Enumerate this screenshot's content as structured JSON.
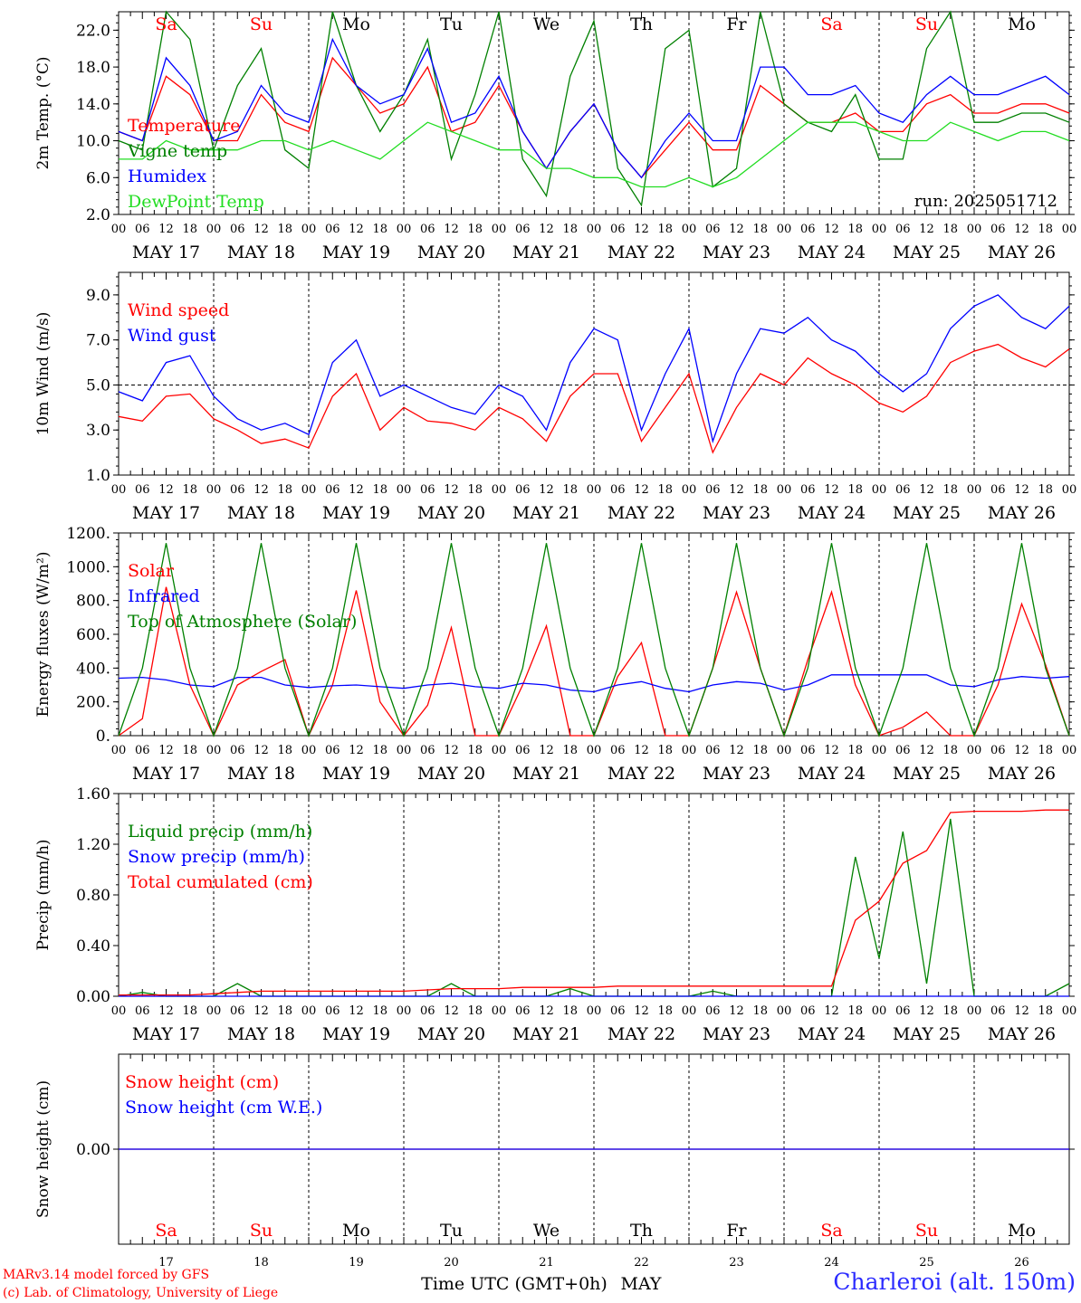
{
  "run_label": "run: 2025051712",
  "footer": {
    "credit_line1": "MARv3.14 model forced by GFS",
    "credit_line2": "(c) Lab. of Climatology, University of Liege",
    "time_axis_label": "Time UTC (GMT+0h)",
    "month_label": "MAY",
    "station": "Charleroi (alt. 150m)"
  },
  "colors": {
    "red": "#ff0000",
    "green": "#008000",
    "blue": "#0000ff",
    "lightgreen": "#22dd22",
    "black": "#000000",
    "weekend": "#ff0000"
  },
  "chart_data": [
    {
      "type": "line",
      "ylabel": "2m Temp. (°C)",
      "ylim": [
        2.0,
        24.0
      ],
      "y_ticks": [
        "2.0",
        "6.0",
        "10.0",
        "14.0",
        "18.0",
        "22.0"
      ],
      "y_tick_values": [
        2,
        6,
        10,
        14,
        18,
        22
      ],
      "legend_placement": "left",
      "x_hour_ticks": [
        "00",
        "06",
        "12",
        "18"
      ],
      "x_day_labels": [
        "MAY 17",
        "MAY 18",
        "MAY 19",
        "MAY 20",
        "MAY 21",
        "MAY 22",
        "MAY 23",
        "MAY 24",
        "MAY 25",
        "MAY 26"
      ],
      "weekday_labels": [
        "Sa",
        "Su",
        "Mo",
        "Tu",
        "We",
        "Th",
        "Fr",
        "Sa",
        "Su",
        "Mo"
      ],
      "x_hours_from_start": [
        0,
        6,
        12,
        18,
        24,
        30,
        36,
        42,
        48,
        54,
        60,
        66,
        72,
        78,
        84,
        90,
        96,
        102,
        108,
        114,
        120,
        126,
        132,
        138,
        144,
        150,
        156,
        162,
        168,
        174,
        180,
        186,
        192,
        198,
        204,
        210,
        216,
        222,
        228,
        234,
        240
      ],
      "series": [
        {
          "name": "Temperature",
          "color": "red",
          "values": [
            11,
            10,
            17,
            15,
            10,
            10,
            15,
            12,
            11,
            19,
            16,
            13,
            14,
            18,
            11,
            12,
            16,
            11,
            7,
            11,
            14,
            9,
            6,
            9,
            12,
            9,
            9,
            16,
            14,
            12,
            12,
            13,
            11,
            11,
            14,
            15,
            13,
            13,
            14,
            14,
            13
          ]
        },
        {
          "name": "Vigne temp",
          "color": "green",
          "values": [
            10,
            9,
            24,
            21,
            9,
            16,
            20,
            9,
            7,
            24,
            16,
            11,
            15,
            21,
            8,
            15,
            24,
            8,
            4,
            17,
            23,
            7,
            3,
            20,
            22,
            5,
            7,
            24,
            14,
            12,
            11,
            15,
            8,
            8,
            20,
            24,
            12,
            12,
            13,
            13,
            12
          ]
        },
        {
          "name": "Humidex",
          "color": "blue",
          "values": [
            11,
            10,
            19,
            16,
            10,
            11,
            16,
            13,
            12,
            21,
            16,
            14,
            15,
            20,
            12,
            13,
            17,
            11,
            7,
            11,
            14,
            9,
            6,
            10,
            13,
            10,
            10,
            18,
            18,
            15,
            15,
            16,
            13,
            12,
            15,
            17,
            15,
            15,
            16,
            17,
            15
          ]
        },
        {
          "name": "DewPoint Temp",
          "color": "lightgreen",
          "values": [
            8,
            8,
            10,
            9,
            9,
            9,
            10,
            10,
            9,
            10,
            9,
            8,
            10,
            12,
            11,
            10,
            9,
            9,
            7,
            7,
            6,
            6,
            5,
            5,
            6,
            5,
            6,
            8,
            10,
            12,
            12,
            12,
            11,
            10,
            10,
            12,
            11,
            10,
            11,
            11,
            10
          ]
        }
      ]
    },
    {
      "type": "line",
      "ylabel": "10m Wind (m/s)",
      "ylim": [
        1.0,
        10.0
      ],
      "y_ticks": [
        "1.0",
        "3.0",
        "5.0",
        "7.0",
        "9.0"
      ],
      "y_tick_values": [
        1,
        3,
        5,
        7,
        9
      ],
      "reference_line": 5.0,
      "legend_placement": "top-left",
      "x_hours_from_start": [
        0,
        6,
        12,
        18,
        24,
        30,
        36,
        42,
        48,
        54,
        60,
        66,
        72,
        78,
        84,
        90,
        96,
        102,
        108,
        114,
        120,
        126,
        132,
        138,
        144,
        150,
        156,
        162,
        168,
        174,
        180,
        186,
        192,
        198,
        204,
        210,
        216,
        222,
        228,
        234,
        240
      ],
      "series": [
        {
          "name": "Wind speed",
          "color": "red",
          "values": [
            3.6,
            3.4,
            4.5,
            4.6,
            3.5,
            3.0,
            2.4,
            2.6,
            2.2,
            4.5,
            5.5,
            3.0,
            4.0,
            3.4,
            3.3,
            3.0,
            4.0,
            3.5,
            2.5,
            4.5,
            5.5,
            5.5,
            2.5,
            4.0,
            5.5,
            2.0,
            4.0,
            5.5,
            5.0,
            6.2,
            5.5,
            5.0,
            4.2,
            3.8,
            4.5,
            6.0,
            6.5,
            6.8,
            6.2,
            5.8,
            6.6
          ]
        },
        {
          "name": "Wind gust",
          "color": "blue",
          "values": [
            4.7,
            4.3,
            6.0,
            6.3,
            4.5,
            3.5,
            3.0,
            3.3,
            2.8,
            6.0,
            7.0,
            4.5,
            5.0,
            4.5,
            4.0,
            3.7,
            5.0,
            4.5,
            3.0,
            6.0,
            7.5,
            7.0,
            3.0,
            5.5,
            7.5,
            2.5,
            5.5,
            7.5,
            7.3,
            8.0,
            7.0,
            6.5,
            5.5,
            4.7,
            5.5,
            7.5,
            8.5,
            9.0,
            8.0,
            7.5,
            8.5
          ]
        }
      ]
    },
    {
      "type": "line",
      "ylabel": "Energy fluxes (W/m²)",
      "ylim": [
        0,
        1200
      ],
      "y_ticks": [
        "0.",
        "200.",
        "400.",
        "600.",
        "800.",
        "1000.",
        "1200."
      ],
      "y_tick_values": [
        0,
        200,
        400,
        600,
        800,
        1000,
        1200
      ],
      "legend_placement": "top-left",
      "x_hours_from_start": [
        0,
        6,
        12,
        18,
        24,
        30,
        36,
        42,
        48,
        54,
        60,
        66,
        72,
        78,
        84,
        90,
        96,
        102,
        108,
        114,
        120,
        126,
        132,
        138,
        144,
        150,
        156,
        162,
        168,
        174,
        180,
        186,
        192,
        198,
        204,
        210,
        216,
        222,
        228,
        234,
        240
      ],
      "series": [
        {
          "name": "Solar",
          "color": "red",
          "values": [
            0,
            100,
            880,
            300,
            0,
            300,
            380,
            450,
            0,
            300,
            860,
            200,
            0,
            180,
            640,
            0,
            0,
            300,
            650,
            0,
            0,
            350,
            550,
            0,
            0,
            400,
            850,
            400,
            0,
            450,
            850,
            300,
            0,
            50,
            140,
            0,
            0,
            300,
            780,
            420,
            0
          ]
        },
        {
          "name": "Infrared",
          "color": "blue",
          "values": [
            340,
            345,
            330,
            300,
            290,
            345,
            345,
            300,
            285,
            295,
            300,
            290,
            280,
            300,
            310,
            290,
            280,
            310,
            300,
            270,
            260,
            300,
            320,
            280,
            260,
            300,
            320,
            310,
            270,
            300,
            360,
            360,
            360,
            360,
            360,
            300,
            290,
            330,
            350,
            340,
            350
          ]
        },
        {
          "name": "Top of Atmosphere (Solar)",
          "color": "green",
          "values": [
            0,
            400,
            1140,
            400,
            0,
            400,
            1140,
            400,
            0,
            400,
            1140,
            400,
            0,
            400,
            1140,
            400,
            0,
            400,
            1140,
            400,
            0,
            400,
            1140,
            400,
            0,
            400,
            1140,
            400,
            0,
            400,
            1140,
            400,
            0,
            400,
            1140,
            400,
            0,
            400,
            1140,
            400,
            0
          ]
        }
      ]
    },
    {
      "type": "line",
      "ylabel": "Precip (mm/h)",
      "ylim": [
        0.0,
        1.6
      ],
      "y_ticks": [
        "0.00",
        "0.40",
        "0.80",
        "1.20",
        "1.60"
      ],
      "y_tick_values": [
        0,
        0.4,
        0.8,
        1.2,
        1.6
      ],
      "legend_placement": "top-left",
      "x_hours_from_start": [
        0,
        6,
        12,
        18,
        24,
        30,
        36,
        42,
        48,
        54,
        60,
        66,
        72,
        78,
        84,
        90,
        96,
        102,
        108,
        114,
        120,
        126,
        132,
        138,
        144,
        150,
        156,
        162,
        168,
        174,
        180,
        186,
        192,
        198,
        204,
        210,
        216,
        222,
        228,
        234,
        240
      ],
      "series": [
        {
          "name": "Liquid precip (mm/h)",
          "color": "green",
          "values": [
            0,
            0.03,
            0,
            0,
            0,
            0.1,
            0,
            0,
            0,
            0,
            0,
            0,
            0,
            0,
            0.1,
            0,
            0,
            0,
            0,
            0.06,
            0,
            0,
            0,
            0,
            0,
            0.04,
            0,
            0,
            0,
            0,
            0,
            1.1,
            0.3,
            1.3,
            0.1,
            1.4,
            0,
            0,
            0,
            0,
            0.1
          ]
        },
        {
          "name": "Snow precip (mm/h)",
          "color": "blue",
          "values": [
            0,
            0,
            0,
            0,
            0,
            0,
            0,
            0,
            0,
            0,
            0,
            0,
            0,
            0,
            0,
            0,
            0,
            0,
            0,
            0,
            0,
            0,
            0,
            0,
            0,
            0,
            0,
            0,
            0,
            0,
            0,
            0,
            0,
            0,
            0,
            0,
            0,
            0,
            0,
            0,
            0
          ]
        },
        {
          "name": "Total cumulated (cm)",
          "color": "red",
          "values": [
            0.01,
            0.01,
            0.01,
            0.01,
            0.02,
            0.03,
            0.04,
            0.04,
            0.04,
            0.04,
            0.04,
            0.04,
            0.04,
            0.05,
            0.06,
            0.06,
            0.06,
            0.07,
            0.07,
            0.07,
            0.07,
            0.08,
            0.08,
            0.08,
            0.08,
            0.08,
            0.08,
            0.08,
            0.08,
            0.08,
            0.08,
            0.6,
            0.75,
            1.05,
            1.15,
            1.45,
            1.46,
            1.46,
            1.46,
            1.47,
            1.47
          ]
        }
      ]
    },
    {
      "type": "line",
      "ylabel": "Snow height (cm)",
      "ylim": [
        -0.5,
        0.5
      ],
      "y_ticks": [
        "0.00"
      ],
      "y_tick_values": [
        0
      ],
      "legend_placement": "top-left",
      "x_day_numbers": [
        "17",
        "18",
        "19",
        "20",
        "21",
        "22",
        "23",
        "24",
        "25",
        "26"
      ],
      "x_hours_from_start": [
        0,
        240
      ],
      "series": [
        {
          "name": "Snow height (cm)",
          "color": "red",
          "values": [
            0,
            0
          ]
        },
        {
          "name": "Snow height (cm W.E.)",
          "color": "blue",
          "values": [
            0,
            0
          ]
        }
      ]
    }
  ]
}
